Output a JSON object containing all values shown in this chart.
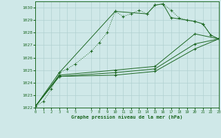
{
  "bg_color": "#cfe8e8",
  "grid_color": "#b0d0d0",
  "line_color": "#1a6620",
  "title": "Graphe pression niveau de la mer (hPa)",
  "xlim": [
    0,
    23
  ],
  "ylim": [
    1022,
    1030.5
  ],
  "yticks": [
    1022,
    1023,
    1024,
    1025,
    1026,
    1027,
    1028,
    1029,
    1030
  ],
  "xticks": [
    0,
    1,
    2,
    3,
    4,
    5,
    7,
    8,
    9,
    10,
    11,
    12,
    13,
    14,
    15,
    16,
    17,
    18,
    19,
    20,
    21,
    22,
    23
  ],
  "series": [
    {
      "x": [
        0,
        1,
        2,
        3,
        4,
        5,
        7,
        8,
        9,
        10,
        11,
        12,
        13,
        14,
        15,
        16,
        17,
        18,
        19,
        20,
        21,
        22,
        23
      ],
      "y": [
        1022.1,
        1022.5,
        1023.5,
        1024.8,
        1025.1,
        1025.5,
        1026.5,
        1027.2,
        1028.0,
        1029.7,
        1029.3,
        1029.5,
        1029.8,
        1029.5,
        1030.2,
        1030.3,
        1029.8,
        1029.2,
        1029.0,
        1028.9,
        1028.7,
        1027.8,
        1027.5
      ],
      "style": "dotted",
      "marker": "+"
    },
    {
      "x": [
        0,
        3,
        10,
        14,
        15,
        16,
        17,
        20,
        21,
        22,
        23
      ],
      "y": [
        1022.1,
        1024.8,
        1029.7,
        1029.5,
        1030.2,
        1030.3,
        1029.2,
        1028.9,
        1028.7,
        1027.8,
        1027.5
      ],
      "style": "solid",
      "marker": "+"
    },
    {
      "x": [
        0,
        3,
        10,
        15,
        20,
        23
      ],
      "y": [
        1022.1,
        1024.6,
        1025.0,
        1025.3,
        1027.9,
        1027.5
      ],
      "style": "solid",
      "marker": "+"
    },
    {
      "x": [
        0,
        3,
        10,
        15,
        20,
        23
      ],
      "y": [
        1022.1,
        1024.5,
        1024.8,
        1025.1,
        1027.1,
        1027.5
      ],
      "style": "solid",
      "marker": "+"
    },
    {
      "x": [
        0,
        3,
        10,
        15,
        20,
        23
      ],
      "y": [
        1022.1,
        1024.5,
        1024.6,
        1024.9,
        1026.7,
        1027.5
      ],
      "style": "solid",
      "marker": "+"
    }
  ]
}
